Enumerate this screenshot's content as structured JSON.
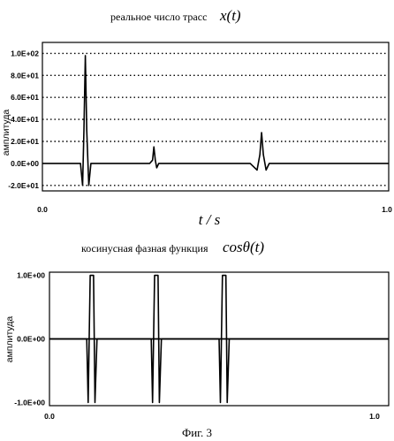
{
  "chart_data": [
    {
      "type": "line",
      "title": "реальное число трасс",
      "title_math": "x(t)",
      "xlabel": "t / s",
      "ylabel": "амплитуда",
      "xlim": [
        0.0,
        1.0
      ],
      "ylim": [
        -25,
        110
      ],
      "x_tick_labels": [
        "0.0",
        "1.0"
      ],
      "y_ticks": [
        100,
        80,
        60,
        40,
        20,
        0,
        -20
      ],
      "y_tick_labels": [
        "1.0E+02",
        "8.0E+01",
        "6.0E+01",
        "4.0E+01",
        "2.0E+01",
        "0.0E+00",
        "-2.0E+01"
      ],
      "grid": "horizontal dotted",
      "series": [
        {
          "style": "solid",
          "x": [
            0.0,
            0.11,
            0.116,
            0.12,
            0.124,
            0.128,
            0.134,
            0.14,
            0.31,
            0.318,
            0.322,
            0.326,
            0.33,
            0.336,
            0.6,
            0.62,
            0.628,
            0.633,
            0.638,
            0.646,
            0.655,
            1.0
          ],
          "y": [
            0,
            0,
            -20,
            30,
            98,
            30,
            -20,
            0,
            0,
            3,
            15,
            3,
            -4,
            0,
            0,
            -6,
            8,
            28,
            8,
            -6,
            0,
            0
          ]
        }
      ]
    },
    {
      "type": "line",
      "title": "косинусная фазная функция",
      "title_math": "cosθ(t)",
      "xlabel": "",
      "ylabel": "амплитуда",
      "xlim": [
        0.0,
        1.0
      ],
      "ylim": [
        -1.05,
        1.05
      ],
      "x_tick_labels": [
        "0.0",
        "1.0"
      ],
      "y_ticks": [
        1,
        0,
        -1
      ],
      "y_tick_labels": [
        "1.0E+00",
        "0.0E+00",
        "-1.0E+00"
      ],
      "grid": "none",
      "series": [
        {
          "style": "solid",
          "x": [
            0.0,
            0.11,
            0.114,
            0.12,
            0.124,
            0.13,
            0.134,
            0.14,
            1.0
          ],
          "y": [
            0,
            0,
            -1,
            1,
            1,
            1,
            -1,
            0,
            0
          ]
        },
        {
          "style": "solid",
          "x": [
            0.0,
            0.3,
            0.304,
            0.31,
            0.314,
            0.32,
            0.324,
            0.33,
            1.0
          ],
          "y": [
            0,
            0,
            -1,
            1,
            1,
            1,
            -1,
            0,
            0
          ]
        },
        {
          "style": "solid",
          "x": [
            0.0,
            0.5,
            0.504,
            0.51,
            0.514,
            0.52,
            0.524,
            0.53,
            1.0
          ],
          "y": [
            0,
            0,
            -1,
            1,
            1,
            1,
            -1,
            0,
            0
          ]
        }
      ]
    }
  ],
  "caption": "Фиг. 3"
}
